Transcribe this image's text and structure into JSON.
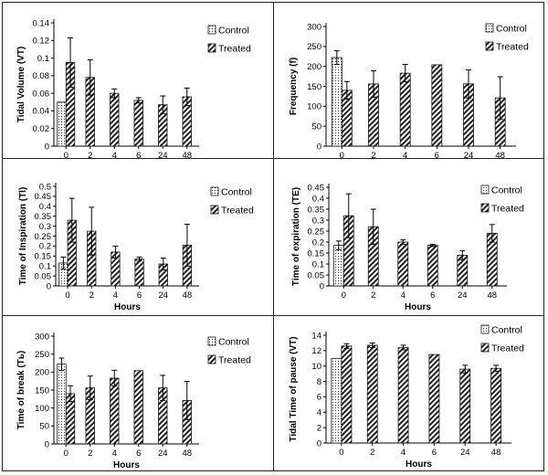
{
  "colors": {
    "axis": "#000000",
    "grid_border": "#222222",
    "bar_edge": "#111111"
  },
  "chart_data": [
    {
      "type": "bar",
      "ylabel": "Tidal Volume (VT)",
      "xlabel": "Hours",
      "categories": [
        "0",
        "2",
        "4",
        "6",
        "24",
        "48"
      ],
      "ylim": [
        0,
        0.14
      ],
      "yticks": [
        "0",
        "0.02",
        "0.04",
        "0.06",
        "0.08",
        "0.1",
        "0.12",
        "0.14"
      ],
      "legend": [
        "Control",
        "Treated"
      ],
      "legend_position": "top-right",
      "series": [
        {
          "name": "Control",
          "pattern": "dotted",
          "values": [
            0.05,
            null,
            null,
            null,
            null,
            null
          ],
          "errors": [
            0,
            null,
            null,
            null,
            null,
            null
          ]
        },
        {
          "name": "Treated",
          "pattern": "hatched",
          "values": [
            0.095,
            0.078,
            0.06,
            0.052,
            0.047,
            0.056
          ],
          "errors": [
            0.028,
            0.02,
            0.005,
            0.003,
            0.01,
            0.01
          ]
        }
      ]
    },
    {
      "type": "bar",
      "ylabel": "Frequency (f)",
      "xlabel": "Hours",
      "categories": [
        "0",
        "2",
        "4",
        "6",
        "24",
        "48"
      ],
      "ylim": [
        0,
        300
      ],
      "yticks": [
        "0",
        "50",
        "100",
        "150",
        "200",
        "250",
        "300"
      ],
      "legend": [
        "Control",
        "Treated"
      ],
      "legend_position": "top-right",
      "series": [
        {
          "name": "Control",
          "pattern": "dotted",
          "values": [
            222,
            null,
            null,
            null,
            null,
            null
          ],
          "errors": [
            17,
            null,
            null,
            null,
            null,
            null
          ]
        },
        {
          "name": "Treated",
          "pattern": "hatched",
          "values": [
            140,
            156,
            183,
            204,
            156,
            121
          ],
          "errors": [
            22,
            33,
            22,
            0,
            35,
            53
          ]
        }
      ]
    },
    {
      "type": "bar",
      "ylabel": "Time of Inspiration (Tl)",
      "xlabel": "Hours",
      "categories": [
        "0",
        "2",
        "4",
        "6",
        "24",
        "48"
      ],
      "ylim": [
        0,
        0.5
      ],
      "yticks": [
        "0",
        "0.05",
        "0.1",
        "0.15",
        "0.2",
        "0.25",
        "0.3",
        "0.35",
        "0.4",
        "0.45",
        "0.5"
      ],
      "legend": [
        "Control",
        "Treated"
      ],
      "legend_position": "top-right",
      "series": [
        {
          "name": "Control",
          "pattern": "dotted",
          "values": [
            0.115,
            null,
            null,
            null,
            null,
            null
          ],
          "errors": [
            0.03,
            null,
            null,
            null,
            null,
            null
          ]
        },
        {
          "name": "Treated",
          "pattern": "hatched",
          "values": [
            0.33,
            0.275,
            0.17,
            0.135,
            0.11,
            0.205
          ],
          "errors": [
            0.11,
            0.12,
            0.03,
            0.01,
            0.03,
            0.105
          ]
        }
      ]
    },
    {
      "type": "bar",
      "ylabel": "Time of expiration (TE)",
      "xlabel": "Hours",
      "categories": [
        "0",
        "2",
        "4",
        "6",
        "24",
        "48"
      ],
      "ylim": [
        0,
        0.45
      ],
      "yticks": [
        "0",
        "0.05",
        "0.1",
        "0.15",
        "0.2",
        "0.25",
        "0.3",
        "0.35",
        "0.4",
        "0.45"
      ],
      "legend": [
        "Control",
        "Treated"
      ],
      "legend_position": "top-right",
      "series": [
        {
          "name": "Control",
          "pattern": "dotted",
          "values": [
            0.185,
            null,
            null,
            null,
            null,
            null
          ],
          "errors": [
            0.02,
            null,
            null,
            null,
            null,
            null
          ]
        },
        {
          "name": "Treated",
          "pattern": "hatched",
          "values": [
            0.32,
            0.27,
            0.2,
            0.185,
            0.14,
            0.24
          ],
          "errors": [
            0.1,
            0.08,
            0.01,
            0.005,
            0.02,
            0.04
          ]
        }
      ]
    },
    {
      "type": "bar",
      "ylabel": "Time of break (Tь)",
      "xlabel": "Hours",
      "categories": [
        "0",
        "2",
        "4",
        "6",
        "24",
        "48"
      ],
      "ylim": [
        0,
        300
      ],
      "yticks": [
        "0",
        "50",
        "100",
        "150",
        "200",
        "250",
        "300"
      ],
      "legend": [
        "Control",
        "Treated"
      ],
      "legend_position": "top-right",
      "series": [
        {
          "name": "Control",
          "pattern": "dotted",
          "values": [
            222,
            null,
            null,
            null,
            null,
            null
          ],
          "errors": [
            17,
            null,
            null,
            null,
            null,
            null
          ]
        },
        {
          "name": "Treated",
          "pattern": "hatched",
          "values": [
            140,
            156,
            183,
            204,
            156,
            121
          ],
          "errors": [
            22,
            33,
            22,
            0,
            35,
            53
          ]
        }
      ]
    },
    {
      "type": "bar",
      "ylabel": "Tidal  Time of pause (VT)",
      "xlabel": "Hours",
      "categories": [
        "0",
        "2",
        "4",
        "6",
        "24",
        "48"
      ],
      "ylim": [
        0,
        14
      ],
      "yticks": [
        "0",
        "2",
        "4",
        "6",
        "8",
        "10",
        "12",
        "14"
      ],
      "legend": [
        "Control",
        "Treated"
      ],
      "legend_position": "top-right",
      "series": [
        {
          "name": "Control",
          "pattern": "dotted",
          "values": [
            11,
            null,
            null,
            null,
            null,
            null
          ],
          "errors": [
            0,
            null,
            null,
            null,
            null,
            null
          ]
        },
        {
          "name": "Treated",
          "pattern": "hatched",
          "values": [
            12.6,
            12.7,
            12.4,
            11.5,
            9.6,
            9.7
          ],
          "errors": [
            0.3,
            0.3,
            0.3,
            0,
            0.5,
            0.4
          ]
        }
      ]
    }
  ]
}
